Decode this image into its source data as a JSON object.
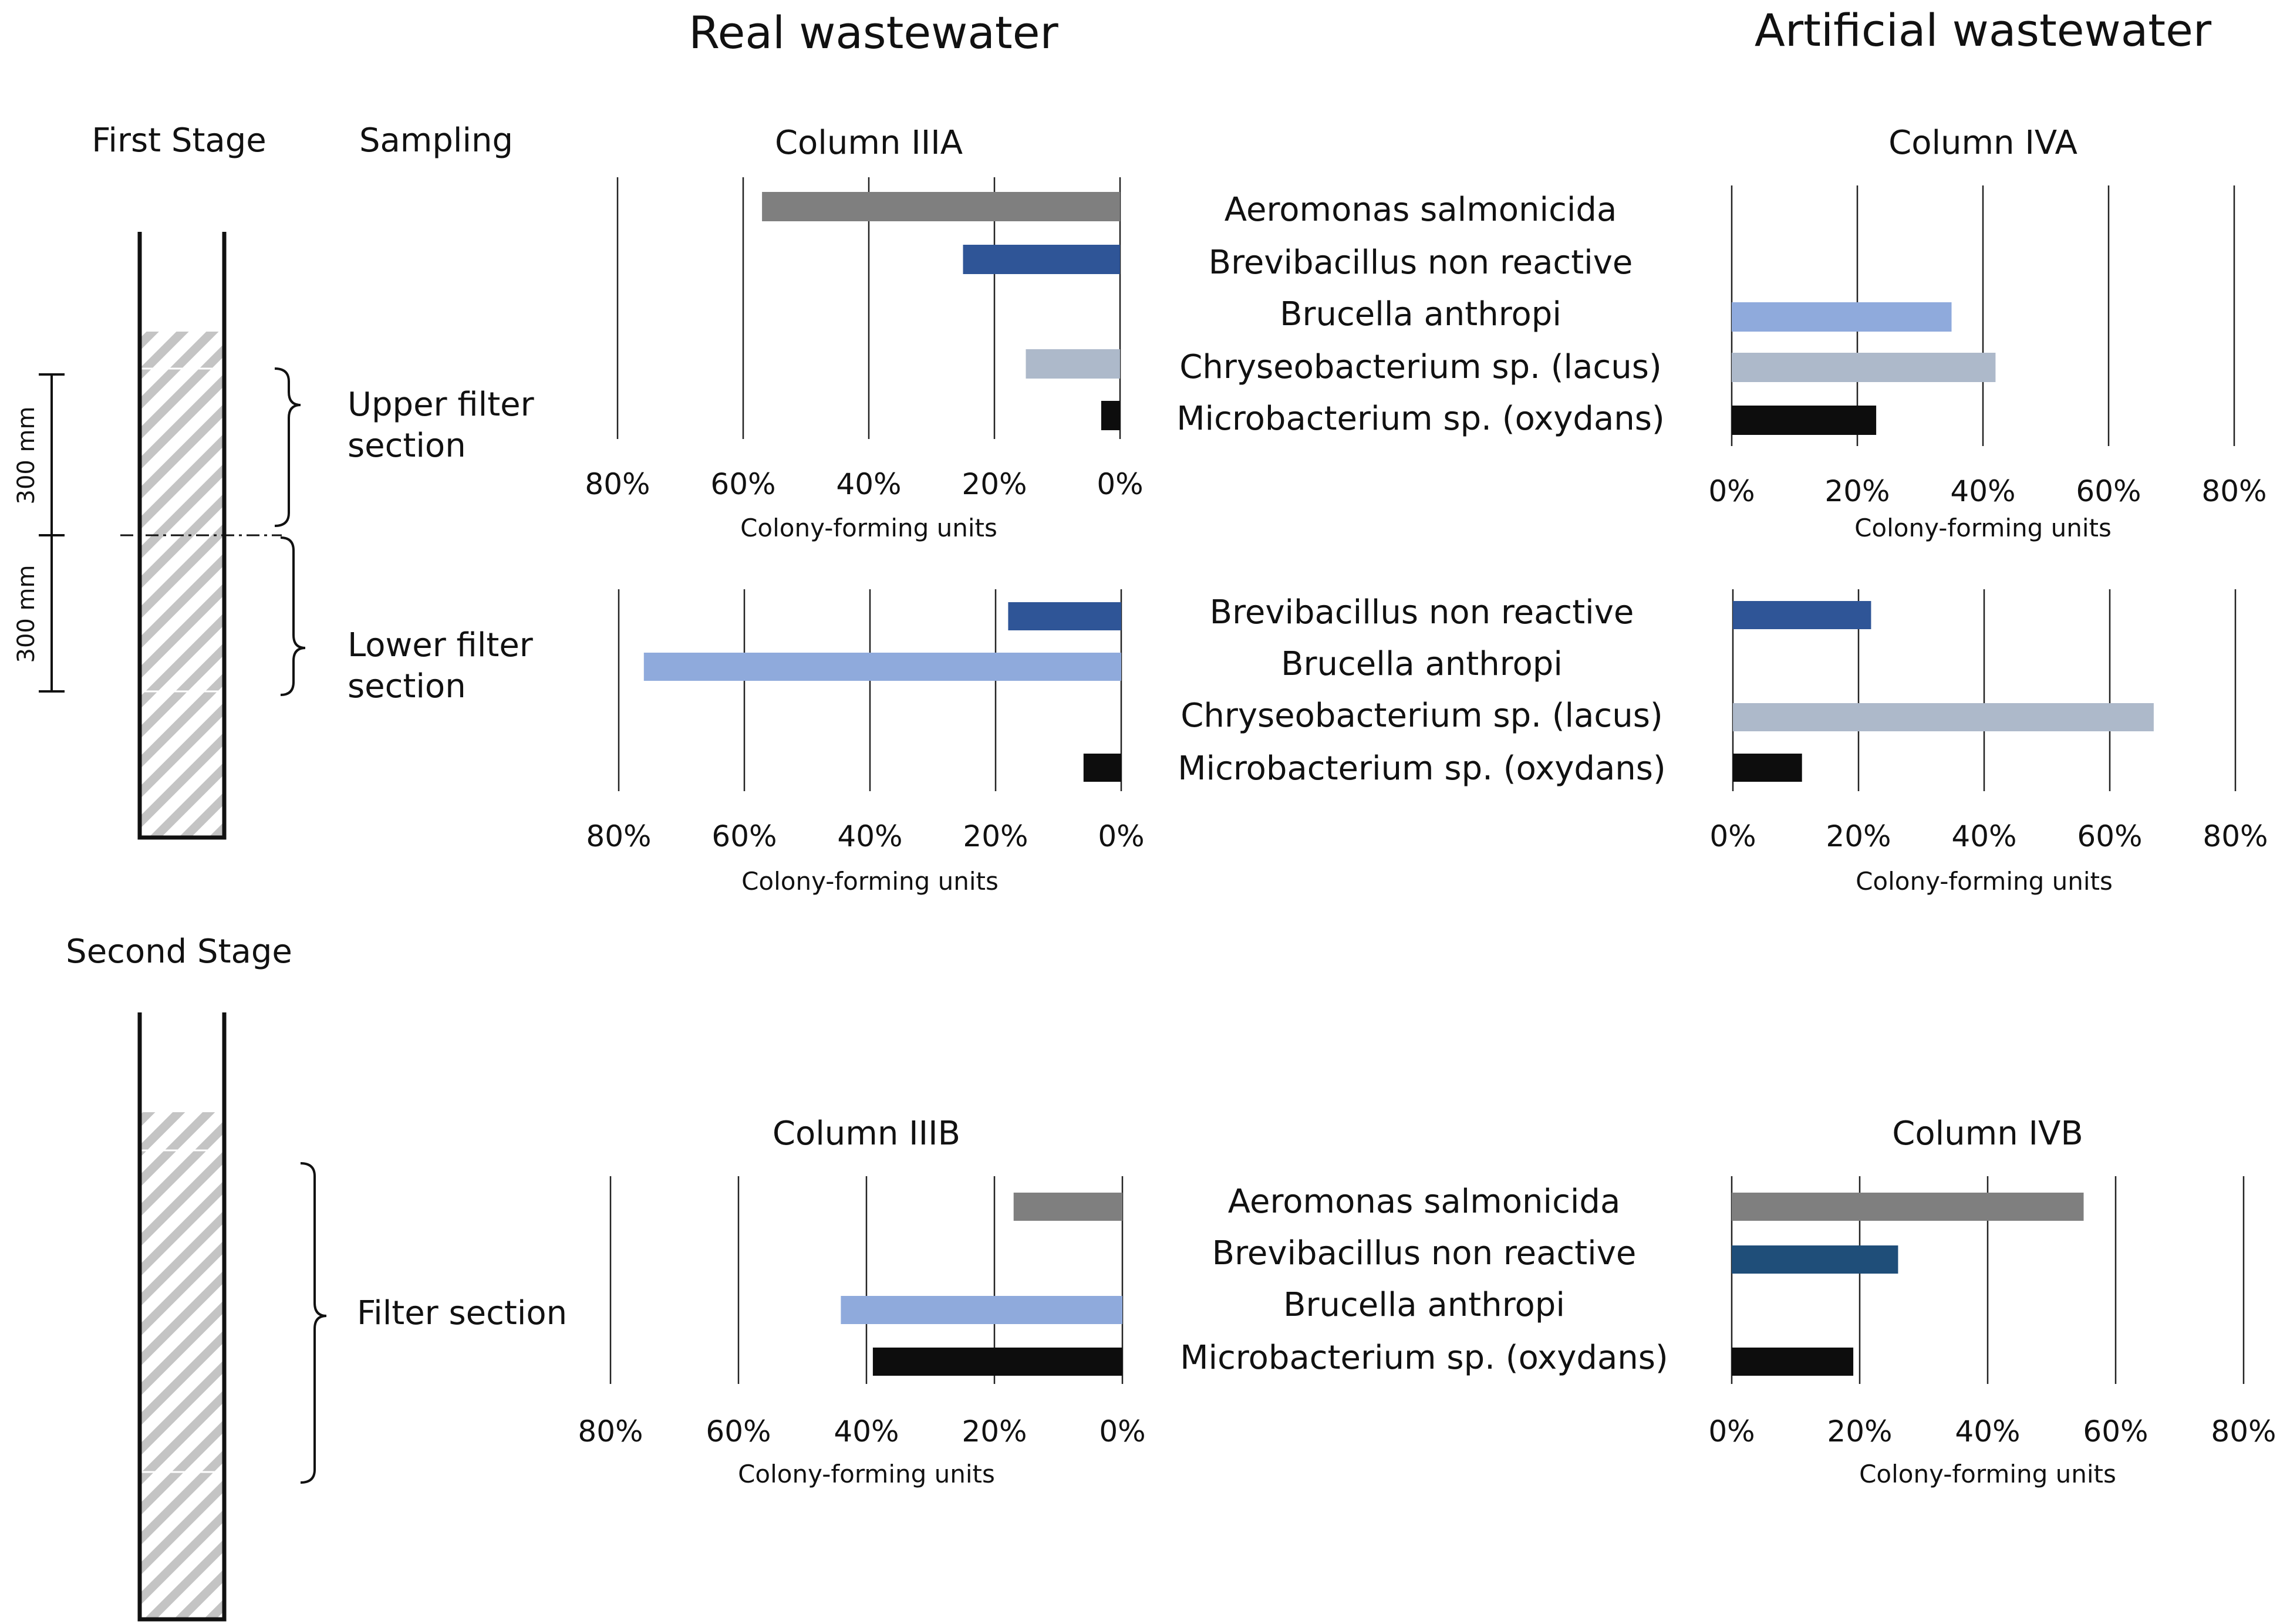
{
  "header": {
    "left_title": "Real wastewater",
    "right_title": "Artificial wastewater"
  },
  "labels": {
    "first_stage": "First Stage",
    "second_stage": "Second Stage",
    "sampling": "Sampling",
    "upper_filter": [
      "Upper filter",
      "section"
    ],
    "lower_filter": [
      "Lower filter",
      "section"
    ],
    "filter_section": "Filter section",
    "dim_upper": "300 mm",
    "dim_lower": "300 mm"
  },
  "colors": {
    "Aeromonas salmonicida": "#7f7f7f",
    "Brevibacillus non reactive": "#2f5597",
    "Brevibacillus non reactive (IVB)": "#1f4e79",
    "Brucella anthropi": "#8faadc",
    "Chryseobacterium sp. (lacus)": "#adb9ca",
    "Microbacterium sp. (oxydans)": "#0d0d0d"
  },
  "chart_data": [
    {
      "id": "IIIA",
      "type": "bar",
      "orientation": "horizontal",
      "direction": "reversed",
      "title": "Column IIIA",
      "xlabel": "Colony-forming units",
      "xlim": [
        0,
        80
      ],
      "ticks": [
        "80%",
        "60%",
        "40%",
        "20%",
        "0%"
      ],
      "categories": [
        "Aeromonas salmonicida",
        "Brevibacillus non reactive",
        "Brucella anthropi",
        "Chryseobacterium sp. (lacus)",
        "Microbacterium sp. (oxydans)"
      ],
      "values": [
        57,
        25,
        0,
        15,
        3
      ]
    },
    {
      "id": "IVA",
      "type": "bar",
      "orientation": "horizontal",
      "direction": "normal",
      "title": "Column IVA",
      "xlabel": "Colony-forming units",
      "xlim": [
        0,
        80
      ],
      "ticks": [
        "0%",
        "20%",
        "40%",
        "60%",
        "80%"
      ],
      "categories": [
        "Aeromonas salmonicida",
        "Brevibacillus non reactive",
        "Brucella anthropi",
        "Chryseobacterium sp. (lacus)",
        "Microbacterium sp. (oxydans)"
      ],
      "values": [
        0,
        0,
        35,
        42,
        23
      ]
    },
    {
      "id": "IIIA-lower",
      "type": "bar",
      "orientation": "horizontal",
      "direction": "reversed",
      "title": "",
      "xlabel": "Colony-forming units",
      "xlim": [
        0,
        80
      ],
      "ticks": [
        "80%",
        "60%",
        "40%",
        "20%",
        "0%"
      ],
      "categories": [
        "Brevibacillus non reactive",
        "Brucella anthropi",
        "Chryseobacterium sp. (lacus)",
        "Microbacterium sp. (oxydans)"
      ],
      "values": [
        18,
        76,
        0,
        6
      ]
    },
    {
      "id": "IVA-lower",
      "type": "bar",
      "orientation": "horizontal",
      "direction": "normal",
      "title": "",
      "xlabel": "Colony-forming units",
      "xlim": [
        0,
        80
      ],
      "ticks": [
        "0%",
        "20%",
        "40%",
        "60%",
        "80%"
      ],
      "categories": [
        "Brevibacillus non reactive",
        "Brucella anthropi",
        "Chryseobacterium sp. (lacus)",
        "Microbacterium sp. (oxydans)"
      ],
      "values": [
        22,
        0,
        67,
        11
      ]
    },
    {
      "id": "IIIB",
      "type": "bar",
      "orientation": "horizontal",
      "direction": "reversed",
      "title": "Column IIIB",
      "xlabel": "Colony-forming units",
      "xlim": [
        0,
        80
      ],
      "ticks": [
        "80%",
        "60%",
        "40%",
        "20%",
        "0%"
      ],
      "categories": [
        "Aeromonas salmonicida",
        "Brevibacillus non reactive",
        "Brucella anthropi",
        "Microbacterium sp. (oxydans)"
      ],
      "values": [
        17,
        0,
        44,
        39
      ]
    },
    {
      "id": "IVB",
      "type": "bar",
      "orientation": "horizontal",
      "direction": "normal",
      "title": "Column IVB",
      "xlabel": "Colony-forming units",
      "xlim": [
        0,
        80
      ],
      "ticks": [
        "0%",
        "20%",
        "40%",
        "60%",
        "80%"
      ],
      "categories": [
        "Aeromonas salmonicida",
        "Brevibacillus non reactive",
        "Brucella anthropi",
        "Microbacterium sp. (oxydans)"
      ],
      "values": [
        55,
        26,
        0,
        19
      ]
    }
  ]
}
